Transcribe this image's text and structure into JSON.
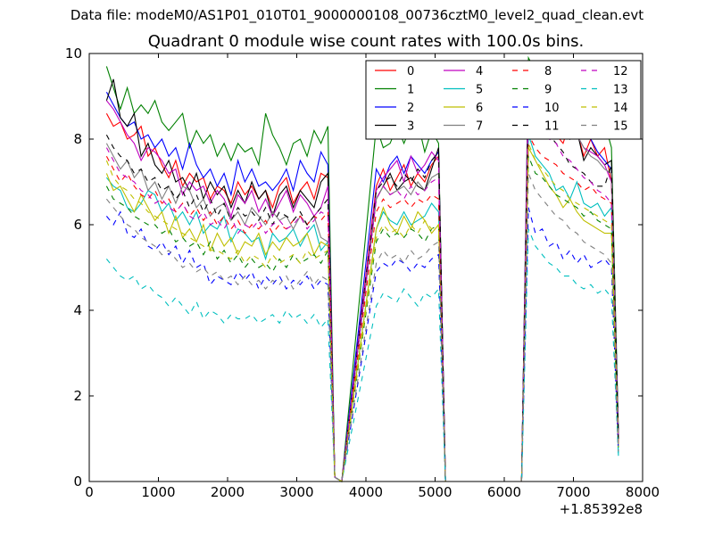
{
  "figure": {
    "suptitle": "Data file: modeM0/AS1P01_010T01_9000000108_00736cztM0_level2_quad_clean.evt"
  },
  "chart_data": {
    "type": "line",
    "title": "Quadrant 0 module wise count rates with 100.0s bins.",
    "xlabel": "",
    "ylabel": "",
    "x_offset_label": "+1.85392e8",
    "xlim": [
      0,
      8000
    ],
    "ylim": [
      0,
      10
    ],
    "xticks": [
      0,
      1000,
      2000,
      3000,
      4000,
      5000,
      6000,
      7000,
      8000
    ],
    "yticks": [
      0,
      2,
      4,
      6,
      8,
      10
    ],
    "grid": false,
    "legend_placement": "top-right",
    "legend_ncol": 4,
    "x": [
      250,
      350,
      450,
      550,
      650,
      750,
      850,
      950,
      1050,
      1150,
      1250,
      1350,
      1450,
      1550,
      1650,
      1750,
      1850,
      1950,
      2050,
      2150,
      2250,
      2350,
      2450,
      2550,
      2650,
      2750,
      2850,
      2950,
      3050,
      3150,
      3250,
      3350,
      3450,
      3550,
      3650,
      4150,
      4250,
      4350,
      4450,
      4550,
      4650,
      4750,
      4850,
      4950,
      5050,
      5150,
      6250,
      6350,
      6450,
      6550,
      6650,
      6750,
      6850,
      6950,
      7050,
      7150,
      7250,
      7350,
      7450,
      7550,
      7650
    ],
    "series": [
      {
        "name": "0",
        "color": "#ff0000",
        "dash": "solid",
        "values": [
          8.6,
          8.3,
          8.4,
          8.0,
          8.1,
          8.3,
          7.6,
          7.8,
          7.4,
          7.1,
          7.5,
          6.9,
          7.2,
          7.0,
          7.1,
          6.6,
          6.9,
          6.8,
          6.5,
          7.0,
          6.7,
          6.9,
          6.6,
          6.8,
          6.4,
          6.9,
          7.1,
          6.5,
          6.8,
          7.0,
          6.6,
          7.2,
          7.1,
          0.1,
          0.0,
          6.9,
          7.3,
          6.8,
          7.1,
          7.4,
          6.9,
          7.2,
          7.0,
          7.4,
          7.6,
          0.0,
          0.0,
          8.6,
          8.5,
          8.3,
          8.7,
          8.1,
          7.9,
          8.4,
          8.2,
          7.6,
          8.0,
          7.6,
          7.8,
          7.0,
          0.9
        ]
      },
      {
        "name": "1",
        "color": "#008000",
        "dash": "solid",
        "values": [
          9.7,
          9.2,
          8.7,
          9.2,
          8.6,
          8.8,
          8.6,
          8.9,
          8.4,
          8.2,
          8.4,
          8.6,
          7.8,
          8.2,
          7.9,
          8.1,
          7.6,
          7.9,
          7.5,
          7.9,
          7.7,
          7.8,
          7.4,
          8.6,
          8.1,
          7.8,
          7.4,
          7.9,
          8.0,
          7.6,
          8.2,
          7.9,
          8.3,
          0.1,
          0.0,
          8.3,
          7.8,
          7.9,
          8.3,
          7.9,
          8.3,
          8.4,
          7.7,
          8.2,
          7.9,
          0.0,
          0.0,
          9.9,
          9.6,
          9.3,
          9.1,
          9.4,
          9.3,
          9.5,
          9.2,
          8.8,
          8.9,
          8.5,
          8.4,
          7.8,
          1.2
        ]
      },
      {
        "name": "2",
        "color": "#0000ff",
        "dash": "solid",
        "values": [
          9.1,
          8.8,
          8.5,
          8.3,
          8.4,
          8.0,
          8.1,
          7.8,
          8.0,
          7.6,
          7.8,
          7.3,
          7.9,
          7.4,
          7.1,
          7.3,
          6.9,
          7.2,
          6.7,
          7.5,
          7.0,
          7.3,
          6.9,
          7.0,
          6.8,
          7.0,
          7.3,
          6.8,
          7.5,
          7.2,
          7.0,
          7.7,
          7.4,
          0.1,
          0.0,
          7.3,
          7.0,
          7.4,
          7.6,
          7.2,
          7.6,
          7.4,
          7.2,
          7.5,
          7.7,
          0.0,
          0.0,
          9.5,
          9.2,
          8.8,
          8.6,
          8.7,
          8.5,
          8.2,
          8.4,
          8.1,
          8.0,
          7.7,
          7.5,
          7.3,
          1.1
        ]
      },
      {
        "name": "3",
        "color": "#000000",
        "dash": "solid",
        "values": [
          8.9,
          9.4,
          8.5,
          8.3,
          8.6,
          7.6,
          7.9,
          7.4,
          7.2,
          7.5,
          7.0,
          7.1,
          6.8,
          7.2,
          6.6,
          7.0,
          6.7,
          6.9,
          6.4,
          6.8,
          6.5,
          7.0,
          6.6,
          6.8,
          6.2,
          6.7,
          6.9,
          6.4,
          6.8,
          6.6,
          6.4,
          7.0,
          7.2,
          0.1,
          0.0,
          6.6,
          6.9,
          7.2,
          6.8,
          7.0,
          7.1,
          6.9,
          6.8,
          7.3,
          7.8,
          0.0,
          0.0,
          9.3,
          9.0,
          8.9,
          8.6,
          8.3,
          8.4,
          8.0,
          8.2,
          7.5,
          7.8,
          7.6,
          7.4,
          7.5,
          1.0
        ]
      },
      {
        "name": "4",
        "color": "#c000c0",
        "dash": "solid",
        "values": [
          8.9,
          8.7,
          8.4,
          8.1,
          7.9,
          7.5,
          7.8,
          7.7,
          7.5,
          7.2,
          7.3,
          6.7,
          7.0,
          6.8,
          6.9,
          6.5,
          6.8,
          6.6,
          6.2,
          6.7,
          6.5,
          6.8,
          6.3,
          6.6,
          6.2,
          6.5,
          6.8,
          6.3,
          6.7,
          6.5,
          6.2,
          6.4,
          6.9,
          0.1,
          0.0,
          6.8,
          7.1,
          7.3,
          7.5,
          7.0,
          7.6,
          7.2,
          7.4,
          7.7,
          7.5,
          0.0,
          0.0,
          9.6,
          9.0,
          8.8,
          8.6,
          8.5,
          8.3,
          8.0,
          8.1,
          7.8,
          7.7,
          7.6,
          7.4,
          7.0,
          0.9
        ]
      },
      {
        "name": "5",
        "color": "#00bfbf",
        "dash": "solid",
        "values": [
          7.1,
          6.9,
          6.8,
          6.4,
          6.3,
          6.5,
          6.8,
          6.7,
          6.3,
          6.5,
          6.1,
          6.3,
          6.0,
          6.3,
          5.8,
          6.0,
          5.9,
          6.2,
          5.6,
          5.9,
          5.8,
          5.6,
          5.7,
          5.2,
          5.8,
          5.6,
          5.7,
          5.9,
          5.5,
          5.8,
          6.0,
          5.4,
          5.6,
          0.1,
          0.0,
          5.9,
          6.3,
          6.1,
          6.0,
          6.3,
          6.0,
          6.1,
          6.2,
          6.5,
          6.3,
          0.0,
          0.0,
          8.1,
          7.6,
          7.4,
          7.2,
          6.8,
          6.9,
          6.6,
          7.0,
          6.5,
          6.4,
          6.5,
          6.2,
          6.4,
          0.6
        ]
      },
      {
        "name": "6",
        "color": "#bfbf00",
        "dash": "solid",
        "values": [
          7.2,
          6.8,
          6.9,
          6.6,
          6.3,
          6.7,
          6.4,
          6.1,
          6.3,
          5.8,
          6.2,
          5.7,
          5.9,
          5.6,
          6.0,
          5.4,
          5.8,
          5.5,
          5.7,
          5.3,
          5.6,
          5.5,
          5.8,
          5.3,
          5.6,
          5.4,
          5.7,
          5.5,
          5.6,
          5.8,
          5.3,
          5.6,
          5.5,
          0.1,
          0.0,
          5.9,
          6.4,
          6.0,
          5.8,
          6.2,
          5.9,
          6.3,
          6.1,
          5.8,
          6.0,
          0.0,
          0.0,
          7.8,
          7.5,
          7.2,
          6.9,
          6.7,
          6.4,
          6.6,
          6.3,
          6.1,
          6.0,
          5.9,
          5.8,
          5.8,
          0.8
        ]
      },
      {
        "name": "7",
        "color": "#808080",
        "dash": "solid",
        "values": [
          7.9,
          7.6,
          7.3,
          7.5,
          7.1,
          7.3,
          6.8,
          7.0,
          6.6,
          6.9,
          6.5,
          6.9,
          6.8,
          6.4,
          6.6,
          6.2,
          6.4,
          6.5,
          6.1,
          6.3,
          6.0,
          6.4,
          6.2,
          6.0,
          6.3,
          6.1,
          6.2,
          5.9,
          6.2,
          6.0,
          6.2,
          5.7,
          5.6,
          0.1,
          0.0,
          6.6,
          6.9,
          6.7,
          6.8,
          6.9,
          6.7,
          7.0,
          6.8,
          7.1,
          7.2,
          0.0,
          0.0,
          9.0,
          8.7,
          8.5,
          8.6,
          8.2,
          8.4,
          8.0,
          8.1,
          7.8,
          7.6,
          7.5,
          7.3,
          7.2,
          1.0
        ]
      },
      {
        "name": "8",
        "color": "#ff0000",
        "dash": "dashed",
        "values": [
          7.6,
          7.3,
          7.0,
          7.2,
          6.9,
          6.7,
          6.6,
          6.8,
          6.5,
          6.6,
          6.3,
          6.5,
          6.2,
          6.4,
          6.1,
          6.3,
          6.0,
          6.2,
          5.9,
          6.1,
          5.8,
          6.0,
          5.9,
          6.1,
          5.8,
          6.0,
          5.9,
          6.1,
          6.2,
          6.0,
          6.2,
          6.1,
          6.3,
          0.1,
          0.0,
          6.3,
          6.6,
          6.4,
          6.5,
          6.6,
          6.4,
          6.6,
          6.5,
          6.7,
          6.6,
          0.0,
          0.0,
          8.1,
          7.8,
          7.6,
          7.5,
          7.4,
          7.2,
          7.1,
          7.0,
          6.8,
          6.9,
          6.7,
          6.6,
          6.5,
          0.9
        ]
      },
      {
        "name": "9",
        "color": "#008000",
        "dash": "dashed",
        "values": [
          6.9,
          6.6,
          6.5,
          6.4,
          6.2,
          6.1,
          6.0,
          6.0,
          5.8,
          5.9,
          5.6,
          5.7,
          5.5,
          5.6,
          5.3,
          5.6,
          5.2,
          5.4,
          5.1,
          5.3,
          5.0,
          5.2,
          5.0,
          5.1,
          4.9,
          5.2,
          5.0,
          5.3,
          5.1,
          5.2,
          5.3,
          5.1,
          5.4,
          0.1,
          0.0,
          5.6,
          5.9,
          5.7,
          5.8,
          5.7,
          5.9,
          5.8,
          5.6,
          5.9,
          6.0,
          0.0,
          0.0,
          7.6,
          7.2,
          7.1,
          6.9,
          6.7,
          6.6,
          6.5,
          6.4,
          6.2,
          6.3,
          6.1,
          6.0,
          5.9,
          0.8
        ]
      },
      {
        "name": "10",
        "color": "#0000ff",
        "dash": "dashed",
        "values": [
          6.2,
          6.0,
          6.3,
          5.8,
          5.7,
          5.9,
          5.5,
          5.4,
          5.6,
          5.3,
          5.5,
          5.1,
          5.4,
          5.0,
          5.1,
          4.6,
          4.8,
          4.7,
          4.6,
          4.9,
          4.7,
          4.9,
          4.5,
          4.8,
          4.6,
          4.8,
          4.5,
          4.7,
          4.6,
          4.8,
          4.5,
          4.7,
          4.6,
          0.1,
          0.0,
          4.9,
          5.1,
          5.0,
          5.2,
          5.1,
          4.9,
          5.1,
          5.0,
          5.2,
          5.3,
          0.0,
          0.0,
          6.4,
          5.8,
          5.9,
          5.5,
          5.6,
          5.2,
          5.4,
          5.1,
          5.3,
          5.0,
          5.1,
          5.2,
          5.0,
          0.7
        ]
      },
      {
        "name": "11",
        "color": "#000000",
        "dash": "dashed",
        "values": [
          8.1,
          7.8,
          7.6,
          7.5,
          7.2,
          7.3,
          7.0,
          7.1,
          6.8,
          6.9,
          6.6,
          6.8,
          6.4,
          6.7,
          6.3,
          6.6,
          6.2,
          6.5,
          6.1,
          6.4,
          6.2,
          6.3,
          6.1,
          6.4,
          6.0,
          6.3,
          6.2,
          6.1,
          6.3,
          6.0,
          6.2,
          6.4,
          6.6,
          0.1,
          0.0,
          6.8,
          7.0,
          7.1,
          6.9,
          7.2,
          7.0,
          7.3,
          7.1,
          7.5,
          7.7,
          0.0,
          0.0,
          8.9,
          8.6,
          8.3,
          8.1,
          7.9,
          7.7,
          7.4,
          7.3,
          7.2,
          7.0,
          6.9,
          6.9,
          7.4,
          1.0
        ]
      },
      {
        "name": "12",
        "color": "#c000c0",
        "dash": "dashed",
        "values": [
          7.8,
          7.5,
          7.2,
          7.1,
          7.0,
          6.8,
          6.7,
          6.5,
          6.6,
          6.4,
          6.3,
          6.5,
          6.2,
          6.1,
          6.3,
          6.0,
          6.1,
          5.9,
          6.2,
          5.8,
          6.0,
          5.9,
          6.1,
          5.8,
          6.0,
          6.1,
          5.9,
          6.0,
          6.2,
          5.9,
          6.1,
          6.3,
          6.2,
          0.1,
          0.0,
          6.6,
          6.9,
          6.7,
          6.8,
          6.6,
          6.9,
          6.7,
          6.8,
          7.0,
          7.1,
          0.0,
          0.0,
          8.8,
          8.4,
          8.2,
          8.0,
          7.9,
          7.6,
          7.5,
          7.3,
          7.1,
          7.0,
          6.8,
          6.7,
          6.5,
          0.9
        ]
      },
      {
        "name": "13",
        "color": "#00bfbf",
        "dash": "dashed",
        "values": [
          5.2,
          5.0,
          4.8,
          4.7,
          4.8,
          4.5,
          4.6,
          4.4,
          4.3,
          4.1,
          4.3,
          4.1,
          3.9,
          4.2,
          3.8,
          4.0,
          3.9,
          3.7,
          3.9,
          3.8,
          3.8,
          3.9,
          3.7,
          3.8,
          3.9,
          3.7,
          4.0,
          3.8,
          3.9,
          3.7,
          3.9,
          3.6,
          3.8,
          0.1,
          0.0,
          4.1,
          4.4,
          4.3,
          4.2,
          4.5,
          4.3,
          4.1,
          4.4,
          4.3,
          4.5,
          0.0,
          0.0,
          5.9,
          5.5,
          5.3,
          5.1,
          5.0,
          4.8,
          4.8,
          4.6,
          4.5,
          4.6,
          4.4,
          4.5,
          4.3,
          0.6
        ]
      },
      {
        "name": "14",
        "color": "#bfbf00",
        "dash": "dashed",
        "values": [
          7.5,
          7.1,
          6.9,
          6.8,
          6.6,
          6.5,
          6.3,
          6.2,
          6.1,
          6.0,
          5.9,
          5.8,
          5.7,
          5.6,
          5.5,
          5.4,
          5.4,
          5.3,
          5.2,
          5.4,
          5.1,
          5.3,
          5.2,
          5.0,
          5.3,
          5.1,
          5.2,
          5.3,
          5.1,
          5.4,
          5.2,
          5.3,
          5.4,
          0.1,
          0.0,
          5.7,
          6.0,
          5.8,
          5.9,
          5.7,
          6.0,
          5.8,
          6.1,
          5.9,
          6.0,
          0.0,
          0.0,
          7.9,
          7.5,
          7.3,
          7.1,
          6.9,
          6.8,
          6.6,
          6.5,
          6.4,
          6.3,
          6.2,
          6.1,
          6.0,
          0.8
        ]
      },
      {
        "name": "15",
        "color": "#808080",
        "dash": "dashed",
        "values": [
          6.6,
          6.4,
          6.2,
          6.0,
          5.9,
          5.7,
          5.6,
          5.5,
          5.3,
          5.4,
          5.2,
          5.0,
          5.1,
          4.9,
          5.0,
          4.8,
          4.9,
          4.7,
          4.8,
          4.6,
          4.8,
          4.6,
          4.7,
          4.5,
          4.7,
          4.6,
          4.8,
          4.5,
          4.7,
          4.9,
          4.6,
          4.8,
          4.7,
          0.1,
          0.0,
          5.1,
          5.4,
          5.2,
          5.3,
          5.1,
          5.4,
          5.2,
          5.3,
          5.5,
          5.6,
          0.0,
          0.0,
          7.2,
          6.8,
          6.6,
          6.4,
          6.2,
          6.1,
          5.9,
          5.8,
          5.6,
          5.5,
          5.4,
          5.3,
          5.1,
          0.7
        ]
      }
    ]
  }
}
